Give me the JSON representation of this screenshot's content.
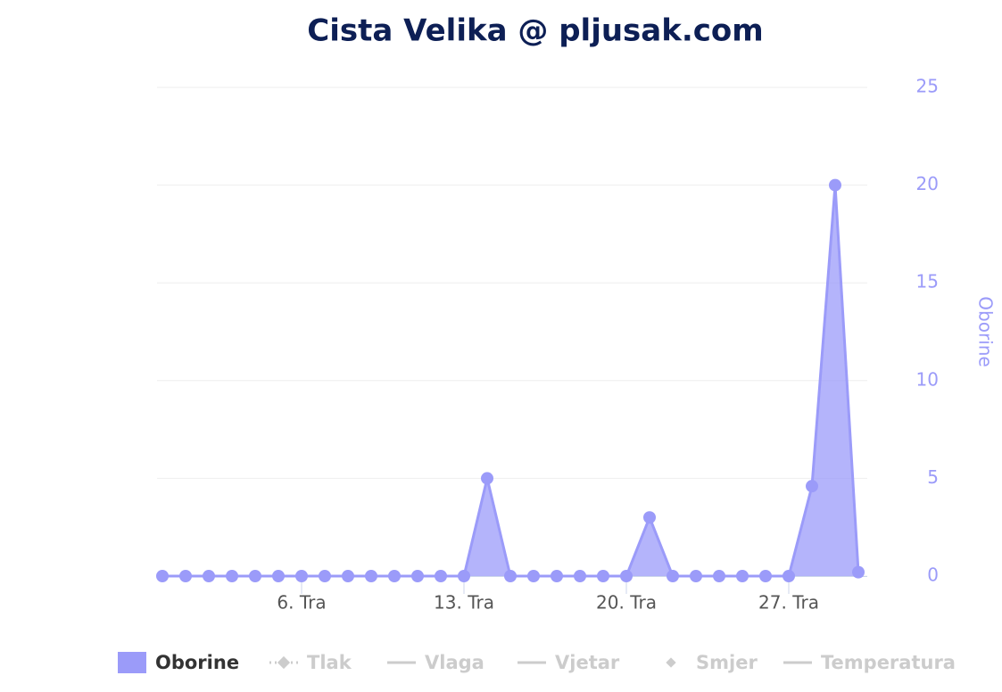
{
  "chart_data": {
    "type": "area",
    "title": "Cista Velika @ pljusak.com",
    "categories": [
      null,
      null,
      null,
      null,
      null,
      null,
      "6. Tra",
      null,
      null,
      null,
      null,
      null,
      null,
      "13. Tra",
      null,
      null,
      null,
      null,
      null,
      null,
      "20. Tra",
      null,
      null,
      null,
      null,
      null,
      null,
      "27. Tra",
      null,
      null,
      null
    ],
    "y_axis_title": "Oborine",
    "y_axis_side": "right",
    "ylim": [
      0,
      25
    ],
    "yticks": [
      0,
      5,
      10,
      15,
      20,
      25
    ],
    "grid": true,
    "series": [
      {
        "name": "Oborine",
        "color": "#9b9bf9",
        "visible": true,
        "values": [
          0,
          0,
          0,
          0,
          0,
          0,
          0,
          0,
          0,
          0,
          0,
          0,
          0,
          0,
          5,
          0,
          0,
          0,
          0,
          0,
          0,
          3,
          0,
          0,
          0,
          0,
          0,
          0,
          4.6,
          20,
          0.2
        ]
      },
      {
        "name": "Tlak",
        "visible": false
      },
      {
        "name": "Vlaga",
        "visible": false
      },
      {
        "name": "Vjetar",
        "visible": false
      },
      {
        "name": "Smjer",
        "visible": false
      },
      {
        "name": "Temperatura",
        "visible": false
      }
    ]
  }
}
